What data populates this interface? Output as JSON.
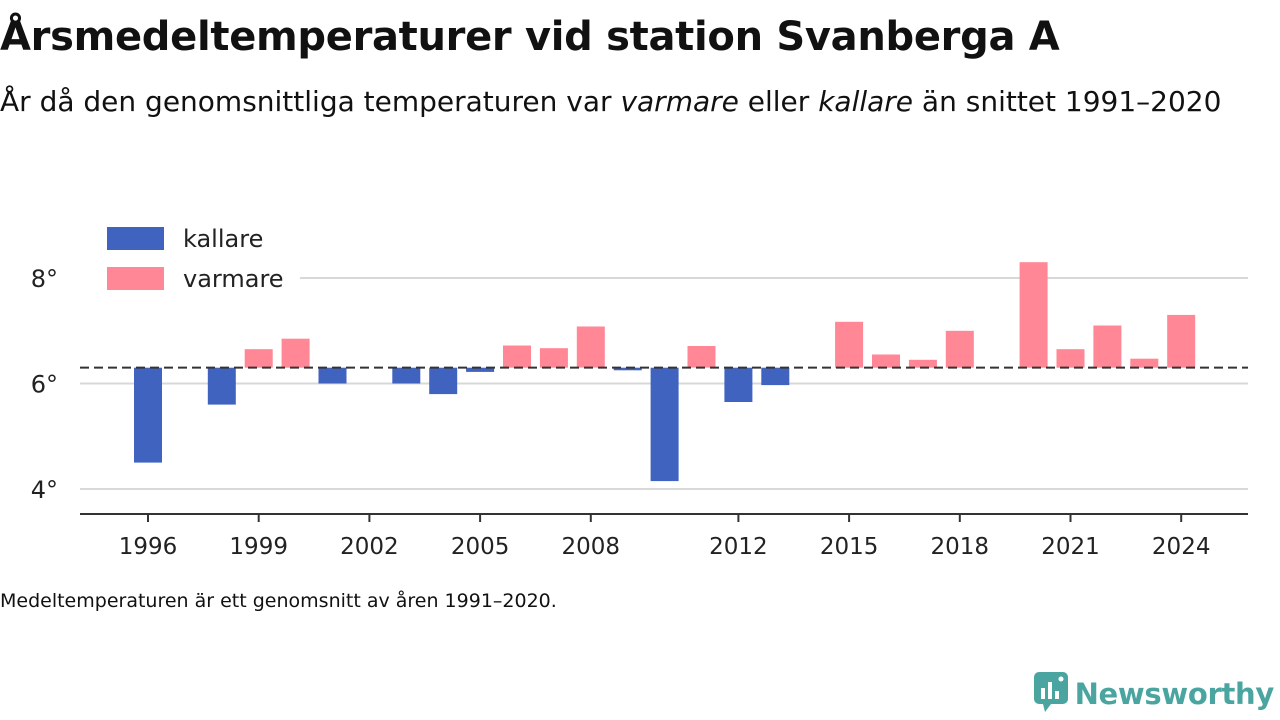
{
  "header": {
    "title": "Årsmedeltemperaturer vid station Svanberga A",
    "subtitle_part1": "År då den genomsnittliga temperaturen var ",
    "subtitle_warm": "varmare",
    "subtitle_part2": " eller ",
    "subtitle_cold": "kallare",
    "subtitle_part3": " än snittet 1991–2020"
  },
  "footnote": "Medeltemperaturen är ett genomsnitt av åren 1991–2020.",
  "brand": {
    "name": "Newsworthy",
    "icon": "newsworthy-logo-icon"
  },
  "colors": {
    "cold": "#4063c0",
    "warm": "#ff8796",
    "grid": "#d8d8d8",
    "baseline": "#333333",
    "brand": "#4aa5a0"
  },
  "chart_data": {
    "type": "bar",
    "baseline": 6.3,
    "baseline_style": "dashed",
    "ylim": [
      3.5,
      9.0
    ],
    "yticks": [
      4,
      6,
      8
    ],
    "ytick_labels": [
      "4°",
      "6°",
      "8°"
    ],
    "xticks": [
      1996,
      1999,
      2002,
      2005,
      2008,
      2012,
      2015,
      2018,
      2021,
      2024
    ],
    "xtick_labels": [
      "1996",
      "1999",
      "2002",
      "2005",
      "2008",
      "2012",
      "2015",
      "2018",
      "2021",
      "2024"
    ],
    "xlim": [
      1993.5,
      2026.9
    ],
    "grid": true,
    "legend": {
      "placement": "top-left",
      "entries": [
        {
          "name": "kallare",
          "color": "#4063c0"
        },
        {
          "name": "varmare",
          "color": "#ff8796"
        }
      ]
    },
    "categories": [
      1996,
      1998,
      1999,
      2000,
      2001,
      2003,
      2004,
      2005,
      2006,
      2007,
      2008,
      2009,
      2010,
      2011,
      2012,
      2013,
      2015,
      2016,
      2017,
      2018,
      2020,
      2021,
      2022,
      2023,
      2024
    ],
    "values": [
      4.5,
      5.6,
      6.65,
      6.85,
      6.0,
      6.0,
      5.8,
      6.22,
      6.72,
      6.67,
      7.08,
      6.25,
      4.15,
      6.71,
      5.65,
      5.97,
      7.17,
      6.55,
      6.45,
      7.0,
      8.3,
      6.65,
      7.1,
      6.47,
      7.3
    ]
  }
}
